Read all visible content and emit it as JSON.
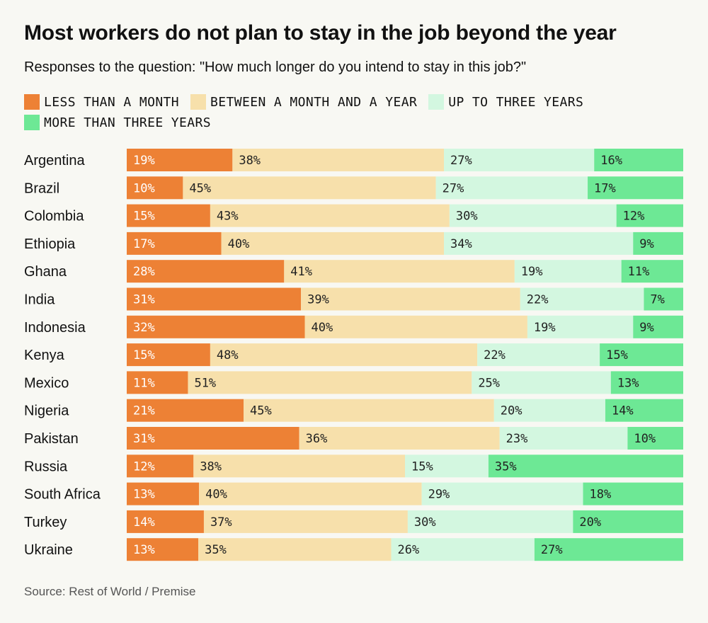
{
  "title": "Most workers do not plan to stay in the job beyond the year",
  "subtitle": "Responses to the question: \"How much longer do you intend to stay in this job?\"",
  "source": "Source: Rest of World / Premise",
  "colors": {
    "less_than_month": "#ed8135",
    "month_to_year": "#f7e0ab",
    "up_to_three": "#d3f7e0",
    "more_than_three": "#6de895",
    "background": "#f8f8f3"
  },
  "legend": [
    {
      "label": "LESS THAN A MONTH",
      "color": "#ed8135"
    },
    {
      "label": "BETWEEN A MONTH AND A YEAR",
      "color": "#f7e0ab"
    },
    {
      "label": "UP TO THREE YEARS",
      "color": "#d3f7e0"
    },
    {
      "label": "MORE THAN THREE YEARS",
      "color": "#6de895"
    }
  ],
  "chart_data": {
    "type": "bar",
    "orientation": "horizontal",
    "stacked": "100%",
    "categories": [
      "Argentina",
      "Brazil",
      "Colombia",
      "Ethiopia",
      "Ghana",
      "India",
      "Indonesia",
      "Kenya",
      "Mexico",
      "Nigeria",
      "Pakistan",
      "Russia",
      "South Africa",
      "Turkey",
      "Ukraine"
    ],
    "series": [
      {
        "name": "LESS THAN A MONTH",
        "color": "#ed8135",
        "values": [
          19,
          10,
          15,
          17,
          28,
          31,
          32,
          15,
          11,
          21,
          31,
          12,
          13,
          14,
          13
        ]
      },
      {
        "name": "BETWEEN A MONTH AND A YEAR",
        "color": "#f7e0ab",
        "values": [
          38,
          45,
          43,
          40,
          41,
          39,
          40,
          48,
          51,
          45,
          36,
          38,
          40,
          37,
          35
        ]
      },
      {
        "name": "UP TO THREE YEARS",
        "color": "#d3f7e0",
        "values": [
          27,
          27,
          30,
          34,
          19,
          22,
          19,
          22,
          25,
          20,
          23,
          15,
          29,
          30,
          26
        ]
      },
      {
        "name": "MORE THAN THREE YEARS",
        "color": "#6de895",
        "values": [
          16,
          17,
          12,
          9,
          11,
          7,
          9,
          15,
          13,
          14,
          10,
          35,
          18,
          20,
          27
        ]
      }
    ],
    "value_suffix": "%",
    "legend_position": "top-left",
    "grid": false
  }
}
